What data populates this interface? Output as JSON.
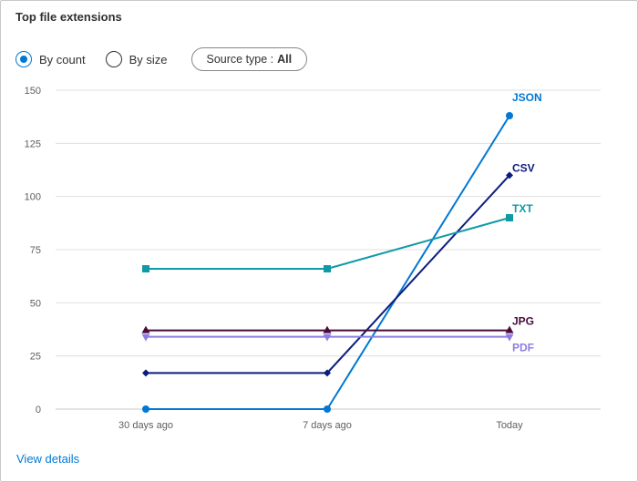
{
  "card": {
    "title": "Top file extensions",
    "view_details_label": "View details"
  },
  "controls": {
    "radio_by_count": "By count",
    "radio_by_size": "By size",
    "selected": "by_count",
    "source_type_label": "Source type :",
    "source_type_value": "All"
  },
  "colors": {
    "accent": "#0078d4",
    "gridline": "#e1dfdd",
    "axis_text": "#605e5c"
  },
  "chart_data": {
    "type": "line",
    "title": "",
    "xlabel": "",
    "ylabel": "",
    "x": [
      "30 days ago",
      "7 days ago",
      "Today"
    ],
    "ylim": [
      0,
      150
    ],
    "yticks": [
      0,
      25,
      50,
      75,
      100,
      125,
      150
    ],
    "grid": true,
    "legend": "labels at series end",
    "series": [
      {
        "name": "JSON",
        "values": [
          0,
          0,
          138
        ],
        "color": "#0078d4",
        "marker": "circle"
      },
      {
        "name": "CSV",
        "values": [
          17,
          17,
          110
        ],
        "color": "#0c1c7e",
        "marker": "diamond"
      },
      {
        "name": "TXT",
        "values": [
          66,
          66,
          90
        ],
        "color": "#0f9aa7",
        "marker": "square"
      },
      {
        "name": "JPG",
        "values": [
          37,
          37,
          37
        ],
        "color": "#4b0a3a",
        "marker": "triangle-up"
      },
      {
        "name": "PDF",
        "values": [
          34,
          34,
          34
        ],
        "color": "#8c7ee0",
        "marker": "triangle-down"
      }
    ]
  }
}
